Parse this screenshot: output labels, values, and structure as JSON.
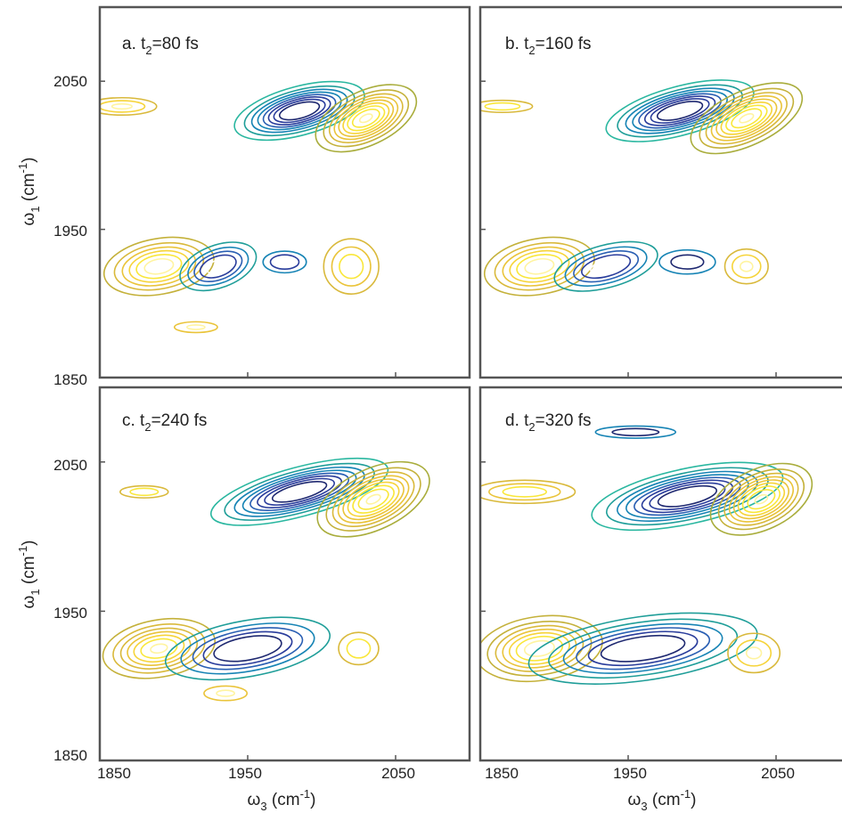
{
  "chart_data": [
    {
      "type": "heatmap",
      "panel_label": {
        "prefix": "a. t",
        "sub": "2",
        "suffix": "=80 fs"
      },
      "xlim": [
        1850,
        2100
      ],
      "ylim": [
        1850,
        2100
      ],
      "contours": [
        {
          "sign": "pos",
          "x": 1985,
          "y": 2030,
          "sx": 22,
          "sy": 8,
          "rot": 15,
          "amp": 1.0
        },
        {
          "sign": "neg",
          "x": 2030,
          "y": 2025,
          "sx": 18,
          "sy": 9,
          "rot": 25,
          "amp": 0.95
        },
        {
          "sign": "neg",
          "x": 1865,
          "y": 2033,
          "sx": 16,
          "sy": 4,
          "rot": 0,
          "amp": 0.35
        },
        {
          "sign": "neg",
          "x": 1890,
          "y": 1925,
          "sx": 20,
          "sy": 10,
          "rot": 10,
          "amp": 0.7
        },
        {
          "sign": "pos",
          "x": 1930,
          "y": 1925,
          "sx": 15,
          "sy": 8,
          "rot": 20,
          "amp": 0.6
        },
        {
          "sign": "pos",
          "x": 1975,
          "y": 1928,
          "sx": 10,
          "sy": 5,
          "rot": 0,
          "amp": 0.35
        },
        {
          "sign": "neg",
          "x": 2020,
          "y": 1925,
          "sx": 12,
          "sy": 12,
          "rot": 0,
          "amp": 0.4
        },
        {
          "sign": "neg",
          "x": 1915,
          "y": 1884,
          "sx": 12,
          "sy": 3,
          "rot": 0,
          "amp": 0.25
        }
      ]
    },
    {
      "type": "heatmap",
      "panel_label": {
        "prefix": "b. t",
        "sub": "2",
        "suffix": "=160 fs"
      },
      "xlim": [
        1850,
        2100
      ],
      "ylim": [
        1850,
        2100
      ],
      "contours": [
        {
          "sign": "pos",
          "x": 1985,
          "y": 2030,
          "sx": 25,
          "sy": 8,
          "rot": 15,
          "amp": 1.0
        },
        {
          "sign": "neg",
          "x": 2030,
          "y": 2025,
          "sx": 20,
          "sy": 9,
          "rot": 25,
          "amp": 0.95
        },
        {
          "sign": "neg",
          "x": 1865,
          "y": 2033,
          "sx": 15,
          "sy": 3,
          "rot": 0,
          "amp": 0.3
        },
        {
          "sign": "neg",
          "x": 1890,
          "y": 1925,
          "sx": 20,
          "sy": 10,
          "rot": 10,
          "amp": 0.7
        },
        {
          "sign": "pos",
          "x": 1935,
          "y": 1925,
          "sx": 20,
          "sy": 8,
          "rot": 15,
          "amp": 0.6
        },
        {
          "sign": "pos",
          "x": 1990,
          "y": 1928,
          "sx": 14,
          "sy": 6,
          "rot": 0,
          "amp": 0.3
        },
        {
          "sign": "neg",
          "x": 2030,
          "y": 1925,
          "sx": 10,
          "sy": 8,
          "rot": 0,
          "amp": 0.35
        }
      ]
    },
    {
      "type": "heatmap",
      "panel_label": {
        "prefix": "c. t",
        "sub": "2",
        "suffix": "=240 fs"
      },
      "xlim": [
        1850,
        2100
      ],
      "ylim": [
        1850,
        2100
      ],
      "contours": [
        {
          "sign": "pos",
          "x": 1985,
          "y": 2030,
          "sx": 30,
          "sy": 8,
          "rot": 15,
          "amp": 1.0
        },
        {
          "sign": "neg",
          "x": 2035,
          "y": 2025,
          "sx": 20,
          "sy": 10,
          "rot": 25,
          "amp": 0.95
        },
        {
          "sign": "neg",
          "x": 1880,
          "y": 2030,
          "sx": 12,
          "sy": 3,
          "rot": 0,
          "amp": 0.3
        },
        {
          "sign": "neg",
          "x": 1890,
          "y": 1925,
          "sx": 20,
          "sy": 10,
          "rot": 10,
          "amp": 0.75
        },
        {
          "sign": "pos",
          "x": 1950,
          "y": 1925,
          "sx": 30,
          "sy": 10,
          "rot": 10,
          "amp": 0.7
        },
        {
          "sign": "neg",
          "x": 2025,
          "y": 1925,
          "sx": 10,
          "sy": 8,
          "rot": 0,
          "amp": 0.3
        },
        {
          "sign": "neg",
          "x": 1935,
          "y": 1895,
          "sx": 12,
          "sy": 4,
          "rot": 0,
          "amp": 0.25
        }
      ]
    },
    {
      "type": "heatmap",
      "panel_label": {
        "prefix": "d. t",
        "sub": "2",
        "suffix": "=320 fs"
      },
      "xlim": [
        1850,
        2100
      ],
      "ylim": [
        1850,
        2100
      ],
      "contours": [
        {
          "sign": "pos",
          "x": 1990,
          "y": 2027,
          "sx": 32,
          "sy": 9,
          "rot": 12,
          "amp": 1.0
        },
        {
          "sign": "neg",
          "x": 2040,
          "y": 2025,
          "sx": 18,
          "sy": 10,
          "rot": 25,
          "amp": 0.95
        },
        {
          "sign": "neg",
          "x": 1880,
          "y": 2030,
          "sx": 22,
          "sy": 5,
          "rot": 0,
          "amp": 0.4
        },
        {
          "sign": "pos",
          "x": 1955,
          "y": 2070,
          "sx": 20,
          "sy": 3,
          "rot": 0,
          "amp": 0.3
        },
        {
          "sign": "neg",
          "x": 1890,
          "y": 1925,
          "sx": 22,
          "sy": 11,
          "rot": 8,
          "amp": 0.8
        },
        {
          "sign": "pos",
          "x": 1960,
          "y": 1925,
          "sx": 40,
          "sy": 11,
          "rot": 8,
          "amp": 0.8
        },
        {
          "sign": "neg",
          "x": 2035,
          "y": 1922,
          "sx": 12,
          "sy": 9,
          "rot": 0,
          "amp": 0.35
        }
      ]
    }
  ],
  "axes": {
    "x_ticks": [
      "1850",
      "1950",
      "2050"
    ],
    "y_ticks": [
      "2050",
      "1950",
      "1850"
    ],
    "x_tick_values": [
      1850,
      1950,
      2050
    ],
    "y_tick_values": [
      2050,
      1950,
      1850
    ],
    "xlabel": {
      "greek": "ω",
      "sub": "3",
      "unit": " (cm",
      "sup": "-1",
      "close": ")"
    },
    "ylabel": {
      "greek": "ω",
      "sub": "1",
      "unit": " (cm",
      "sup": "-1",
      "close": ")"
    }
  },
  "colors": {
    "positive": [
      "#2ab7a0",
      "#1f9e99",
      "#1784b5",
      "#2a5fb3",
      "#2a3d9c",
      "#1e2870",
      "#ffffff"
    ],
    "negative": [
      "#a9ad3c",
      "#c4b13a",
      "#d9b93b",
      "#eac43a",
      "#f6d43a",
      "#f9e73a",
      "#fff4a0"
    ],
    "frame": "#555555"
  }
}
